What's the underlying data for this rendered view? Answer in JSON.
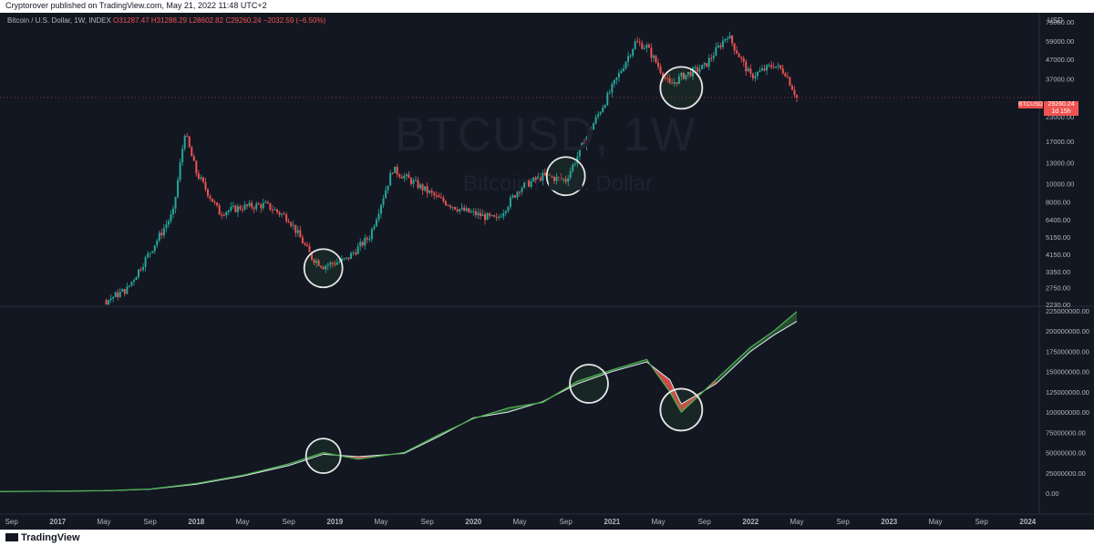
{
  "header": {
    "published": "Cryptorover published on TradingView.com, May 21, 2022 11:48 UTC+2"
  },
  "legend": {
    "name": "Bitcoin / U.S. Dollar, 1W, INDEX",
    "o": "O31287.47",
    "h": "H31288.29",
    "l": "L28602.82",
    "c": "C29260.24",
    "change": "−2032.59 (−6.50%)"
  },
  "watermark": {
    "symbol": "BTCUSD, 1W",
    "desc": "Bitcoin / U.S. Dollar"
  },
  "axis_unit": "USD",
  "price_tag": {
    "symbol": "BTCUSD",
    "value": "29260.24",
    "countdown": "1d 15h"
  },
  "footer": {
    "brand": "TradingView"
  },
  "colors": {
    "up": "#26a69a",
    "down": "#ef5350",
    "background": "#131722",
    "line_fast": "#4caf50",
    "line_slow": "#e0f2f1"
  },
  "chart_data": [
    {
      "type": "candlestick",
      "title": "",
      "scale": "log",
      "ylim": [
        2230,
        75000
      ],
      "y_ticks": [
        "75000.00",
        "59000.00",
        "47000.00",
        "37000.00",
        "29260.24",
        "23000.00",
        "17000.00",
        "13000.00",
        "10000.00",
        "8000.00",
        "6400.00",
        "5150.00",
        "4150.00",
        "3350.00",
        "2750.00",
        "2230.00"
      ],
      "x": [
        "2016-11",
        "2017-01",
        "2017-03",
        "2017-05",
        "2017-07",
        "2017-09",
        "2017-11",
        "2017-12",
        "2018-01",
        "2018-03",
        "2018-05",
        "2018-07",
        "2018-09",
        "2018-11",
        "2018-12",
        "2019-02",
        "2019-04",
        "2019-06",
        "2019-08",
        "2019-10",
        "2019-12",
        "2020-03",
        "2020-05",
        "2020-07",
        "2020-09",
        "2020-11",
        "2021-01",
        "2021-03",
        "2021-04",
        "2021-06",
        "2021-07",
        "2021-09",
        "2021-11",
        "2022-01",
        "2022-03",
        "2022-04",
        "2022-05"
      ],
      "close": [
        740,
        1000,
        1100,
        2300,
        2700,
        4300,
        7000,
        19000,
        11500,
        7000,
        7500,
        7700,
        6500,
        4000,
        3600,
        3900,
        5200,
        12000,
        10000,
        8300,
        7200,
        6400,
        9500,
        11000,
        10500,
        19000,
        33000,
        58000,
        55000,
        34000,
        38000,
        43000,
        64000,
        38000,
        44000,
        40000,
        29260
      ],
      "annotations": [
        "circle: Dec 2018 bottom",
        "circle: Sep 2020",
        "circle: Jul 2021"
      ]
    },
    {
      "type": "line",
      "title": "",
      "ylim": [
        0,
        225000000
      ],
      "y_ticks": [
        "225000000.00",
        "200000000.00",
        "175000000.00",
        "150000000.00",
        "125000000.00",
        "100000000.00",
        "75000000.00",
        "50000000.00",
        "25000000.00",
        "0.00"
      ],
      "x": [
        "2016-08",
        "2017-01",
        "2017-05",
        "2017-09",
        "2018-01",
        "2018-05",
        "2018-09",
        "2018-12",
        "2019-03",
        "2019-07",
        "2019-10",
        "2020-01",
        "2020-04",
        "2020-07",
        "2020-10",
        "2021-01",
        "2021-04",
        "2021-06",
        "2021-07",
        "2021-10",
        "2022-01",
        "2022-03",
        "2022-05"
      ],
      "series": [
        {
          "values": [
            2000000,
            2500000,
            3000000,
            5000000,
            12000000,
            22000000,
            36000000,
            50000000,
            42000000,
            50000000,
            72000000,
            92000000,
            105000000,
            112000000,
            138000000,
            152000000,
            165000000,
            125000000,
            100000000,
            140000000,
            180000000,
            200000000,
            224000000
          ]
        },
        {
          "values": [
            2000000,
            2400000,
            2900000,
            4800000,
            11000000,
            21000000,
            34000000,
            48000000,
            45000000,
            49000000,
            70000000,
            93000000,
            100000000,
            113000000,
            135000000,
            150000000,
            162000000,
            140000000,
            110000000,
            135000000,
            175000000,
            195000000,
            212000000
          ]
        }
      ],
      "annotations": [
        "circle: late 2018 cross",
        "circle: Oct 2020 dip",
        "circle: Jul 2021 dip"
      ]
    }
  ],
  "x_axis": {
    "labels": [
      "Sep",
      "2017",
      "May",
      "Sep",
      "2018",
      "May",
      "Sep",
      "2019",
      "May",
      "Sep",
      "2020",
      "May",
      "Sep",
      "2021",
      "May",
      "Sep",
      "2022",
      "May",
      "Sep",
      "2023",
      "May",
      "Sep",
      "2024"
    ]
  }
}
